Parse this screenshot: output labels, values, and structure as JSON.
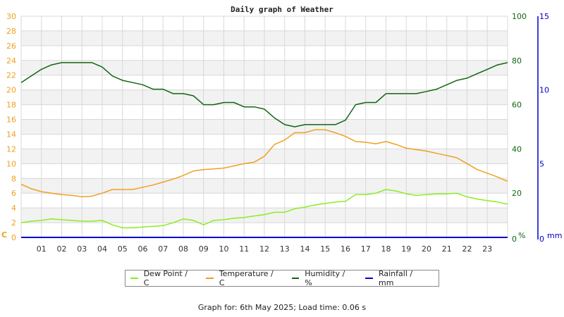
{
  "chart_data": {
    "type": "line",
    "title": "Daily graph of Weather",
    "xlabel": "",
    "x_ticks": [
      "01",
      "02",
      "03",
      "04",
      "05",
      "06",
      "07",
      "08",
      "09",
      "10",
      "11",
      "12",
      "13",
      "14",
      "15",
      "16",
      "17",
      "18",
      "19",
      "20",
      "21",
      "22",
      "23"
    ],
    "x_range_hours": [
      0,
      24
    ],
    "axes": {
      "left": {
        "label": "C",
        "range": [
          0,
          30
        ],
        "ticks": [
          0,
          2,
          4,
          6,
          8,
          10,
          12,
          14,
          16,
          18,
          20,
          22,
          24,
          26,
          28,
          30
        ],
        "color": "#f0a020"
      },
      "right_humidity": {
        "label": "%",
        "range": [
          0,
          100
        ],
        "ticks": [
          0,
          20,
          40,
          60,
          80,
          100
        ],
        "color": "#116611"
      },
      "right_rainfall": {
        "label": "mm",
        "range": [
          0,
          15
        ],
        "ticks": [
          0,
          5,
          10,
          15
        ],
        "color": "#0000cc"
      }
    },
    "grid": true,
    "legend_position": "bottom",
    "series": [
      {
        "name": "Dew Point / C",
        "axis": "left",
        "color": "#88ee22",
        "x": [
          0,
          0.5,
          1,
          1.5,
          2,
          2.5,
          3,
          3.5,
          4,
          4.5,
          5,
          5.5,
          6,
          6.5,
          7,
          7.5,
          8,
          8.5,
          9,
          9.5,
          10,
          10.5,
          11,
          11.5,
          12,
          12.5,
          13,
          13.5,
          14,
          14.5,
          15,
          15.5,
          16,
          16.5,
          17,
          17.5,
          18,
          18.5,
          19,
          19.5,
          20,
          20.5,
          21,
          21.5,
          22,
          22.5,
          23,
          23.5,
          24
        ],
        "values": [
          2.0,
          2.2,
          2.3,
          2.5,
          2.4,
          2.3,
          2.2,
          2.2,
          2.3,
          1.7,
          1.3,
          1.3,
          1.4,
          1.5,
          1.6,
          2.0,
          2.5,
          2.3,
          1.7,
          2.3,
          2.4,
          2.6,
          2.7,
          2.9,
          3.1,
          3.4,
          3.4,
          3.9,
          4.1,
          4.4,
          4.6,
          4.8,
          4.9,
          5.8,
          5.8,
          6.0,
          6.5,
          6.3,
          5.9,
          5.7,
          5.8,
          5.9,
          5.9,
          6.0,
          5.5,
          5.2,
          5.0,
          4.8,
          4.5
        ]
      },
      {
        "name": "Temperature / C",
        "axis": "left",
        "color": "#f0a020",
        "x": [
          0,
          0.5,
          1,
          1.5,
          2,
          2.5,
          3,
          3.5,
          4,
          4.5,
          5,
          5.5,
          6,
          6.5,
          7,
          7.5,
          8,
          8.5,
          9,
          9.5,
          10,
          10.5,
          11,
          11.5,
          12,
          12.5,
          13,
          13.5,
          14,
          14.5,
          15,
          15.5,
          16,
          16.5,
          17,
          17.5,
          18,
          18.5,
          19,
          19.5,
          20,
          20.5,
          21,
          21.5,
          22,
          22.5,
          23,
          23.5,
          24
        ],
        "values": [
          7.2,
          6.6,
          6.2,
          6.0,
          5.8,
          5.7,
          5.5,
          5.6,
          6.0,
          6.5,
          6.5,
          6.5,
          6.8,
          7.1,
          7.5,
          7.9,
          8.4,
          9.0,
          9.2,
          9.3,
          9.4,
          9.7,
          10.0,
          10.2,
          11.0,
          12.6,
          13.2,
          14.2,
          14.2,
          14.6,
          14.6,
          14.2,
          13.7,
          13.0,
          12.9,
          12.7,
          13.0,
          12.6,
          12.1,
          11.9,
          11.7,
          11.4,
          11.1,
          10.8,
          10.0,
          9.2,
          8.7,
          8.2,
          7.6
        ]
      },
      {
        "name": "Humidity / %",
        "axis": "right_humidity",
        "color": "#116611",
        "x": [
          0,
          0.5,
          1,
          1.5,
          2,
          2.5,
          3,
          3.5,
          4,
          4.5,
          5,
          5.5,
          6,
          6.5,
          7,
          7.5,
          8,
          8.5,
          9,
          9.5,
          10,
          10.5,
          11,
          11.5,
          12,
          12.5,
          13,
          13.5,
          14,
          14.5,
          15,
          15.5,
          16,
          16.5,
          17,
          17.5,
          18,
          18.5,
          19,
          19.5,
          20,
          20.5,
          21,
          21.5,
          22,
          22.5,
          23,
          23.5,
          24
        ],
        "values": [
          70,
          73,
          76,
          78,
          79,
          79,
          79,
          79,
          77,
          73,
          71,
          70,
          69,
          67,
          67,
          65,
          65,
          64,
          60,
          60,
          61,
          61,
          59,
          59,
          58,
          54,
          51,
          50,
          51,
          51,
          51,
          51,
          53,
          60,
          61,
          61,
          65,
          65,
          65,
          65,
          66,
          67,
          69,
          71,
          72,
          74,
          76,
          78,
          79
        ]
      },
      {
        "name": "Rainfall / mm",
        "axis": "right_rainfall",
        "color": "#0000cc",
        "x": [
          0,
          24
        ],
        "values": [
          0,
          0
        ]
      }
    ]
  },
  "legend": {
    "items": [
      {
        "label": "Dew Point / C",
        "color": "#88ee22"
      },
      {
        "label": "Temperature / C",
        "color": "#f0a020"
      },
      {
        "label": "Humidity / %",
        "color": "#116611"
      },
      {
        "label": "Rainfall / mm",
        "color": "#0000cc"
      }
    ]
  },
  "footer": {
    "text": "Graph for: 6th May 2025; Load time: 0.06 s"
  }
}
